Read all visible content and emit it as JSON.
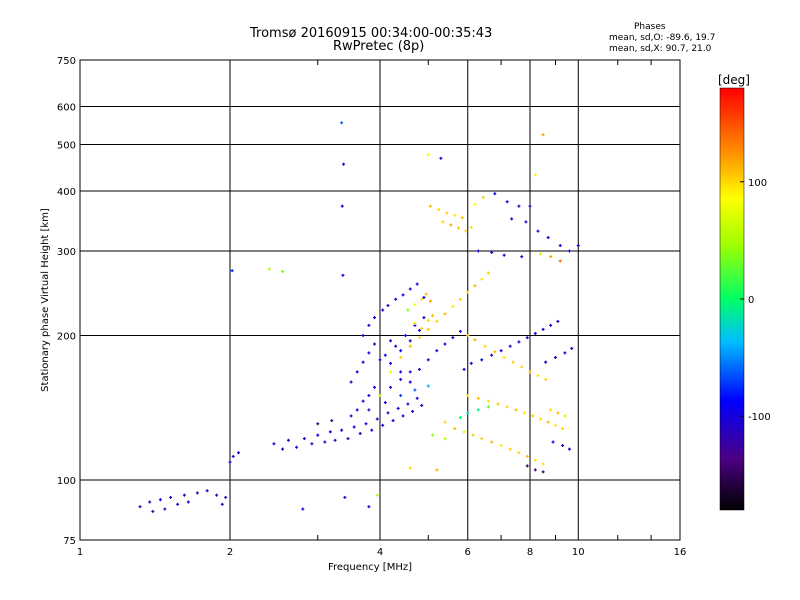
{
  "header": {
    "title_line1": "Tromsø 20160915 00:34:00-00:35:43",
    "title_line2": "RwPretec (8p)"
  },
  "phases_box": {
    "title": "Phases",
    "line_o": "mean, sd,O: -89.6, 19.7",
    "line_x": "mean, sd,X:  90.7, 21.0"
  },
  "colorbar": {
    "label": "[deg]",
    "range": [
      -180,
      180
    ],
    "ticks": [
      {
        "value": 100,
        "label": "100"
      },
      {
        "value": 0,
        "label": "0"
      },
      {
        "value": -100,
        "label": "-100"
      }
    ]
  },
  "chart_data": {
    "type": "scatter",
    "xlabel": "Frequency [MHz]",
    "ylabel": "Stationary phase Virtual Height [km]",
    "xscale": "log",
    "yscale": "log",
    "xlim": [
      1,
      16
    ],
    "ylim": [
      75,
      750
    ],
    "grid": true,
    "xticks": [
      1,
      2,
      4,
      6,
      8,
      10,
      16
    ],
    "yticks": [
      75,
      100,
      200,
      300,
      400,
      500,
      600,
      750
    ],
    "color_by": "phase_deg",
    "points": [
      [
        1.32,
        88,
        -110
      ],
      [
        1.38,
        90,
        -115
      ],
      [
        1.4,
        86,
        -120
      ],
      [
        1.45,
        91,
        -100
      ],
      [
        1.48,
        87,
        -112
      ],
      [
        1.52,
        92,
        -118
      ],
      [
        1.57,
        89,
        -105
      ],
      [
        1.62,
        93,
        -110
      ],
      [
        1.65,
        90,
        -100
      ],
      [
        1.72,
        94,
        -115
      ],
      [
        1.8,
        95,
        -108
      ],
      [
        1.88,
        93,
        -118
      ],
      [
        1.93,
        89,
        -112
      ],
      [
        1.96,
        92,
        -105
      ],
      [
        2.0,
        109,
        -100
      ],
      [
        2.03,
        112,
        -110
      ],
      [
        2.08,
        114,
        -95
      ],
      [
        2.02,
        273,
        -80
      ],
      [
        2.4,
        275,
        50
      ],
      [
        2.55,
        272,
        30
      ],
      [
        3.35,
        555,
        -60
      ],
      [
        3.38,
        455,
        -95
      ],
      [
        3.36,
        372,
        -100
      ],
      [
        3.37,
        267,
        -90
      ],
      [
        2.45,
        119,
        -100
      ],
      [
        2.55,
        116,
        -105
      ],
      [
        2.62,
        121,
        -110
      ],
      [
        2.72,
        117,
        -95
      ],
      [
        2.82,
        122,
        -105
      ],
      [
        2.92,
        119,
        -115
      ],
      [
        3.0,
        124,
        -100
      ],
      [
        3.1,
        120,
        -110
      ],
      [
        3.18,
        126,
        -95
      ],
      [
        3.25,
        121,
        -120
      ],
      [
        3.35,
        127,
        -105
      ],
      [
        3.45,
        122,
        -110
      ],
      [
        3.55,
        129,
        -100
      ],
      [
        3.65,
        125,
        -115
      ],
      [
        3.75,
        131,
        -95
      ],
      [
        3.85,
        127,
        -105
      ],
      [
        3.95,
        134,
        -110
      ],
      [
        4.05,
        130,
        -100
      ],
      [
        4.15,
        138,
        -115
      ],
      [
        4.25,
        133,
        -95
      ],
      [
        4.35,
        141,
        -105
      ],
      [
        4.45,
        136,
        -110
      ],
      [
        4.55,
        144,
        -100
      ],
      [
        4.65,
        139,
        -112
      ],
      [
        4.75,
        148,
        -95
      ],
      [
        4.85,
        143,
        -105
      ],
      [
        3.0,
        131,
        -140
      ],
      [
        3.2,
        133,
        -130
      ],
      [
        3.5,
        136,
        -125
      ],
      [
        3.8,
        140,
        -115
      ],
      [
        4.1,
        145,
        -95
      ],
      [
        4.4,
        150,
        -70
      ],
      [
        4.7,
        154,
        -60
      ],
      [
        5.0,
        157,
        -40
      ],
      [
        4.0,
        178,
        -100
      ],
      [
        4.1,
        182,
        -85
      ],
      [
        4.2,
        175,
        -95
      ],
      [
        4.3,
        190,
        -105
      ],
      [
        4.4,
        186,
        -90
      ],
      [
        4.5,
        200,
        -100
      ],
      [
        4.6,
        195,
        -110
      ],
      [
        4.7,
        210,
        -95
      ],
      [
        4.8,
        205,
        -105
      ],
      [
        4.9,
        218,
        -100
      ],
      [
        4.05,
        226,
        -100
      ],
      [
        4.15,
        231,
        -110
      ],
      [
        4.3,
        238,
        -105
      ],
      [
        4.45,
        243,
        -95
      ],
      [
        4.6,
        250,
        -110
      ],
      [
        4.75,
        256,
        -100
      ],
      [
        4.9,
        240,
        -100
      ],
      [
        4.55,
        226,
        40
      ],
      [
        4.7,
        232,
        80
      ],
      [
        4.85,
        238,
        100
      ],
      [
        4.95,
        244,
        110
      ],
      [
        5.05,
        236,
        120
      ],
      [
        4.7,
        212,
        95
      ],
      [
        4.85,
        207,
        105
      ],
      [
        5.0,
        215,
        100
      ],
      [
        5.1,
        220,
        110
      ],
      [
        5.05,
        372,
        110
      ],
      [
        5.25,
        366,
        100
      ],
      [
        5.45,
        360,
        105
      ],
      [
        5.65,
        356,
        95
      ],
      [
        5.85,
        352,
        110
      ],
      [
        5.35,
        345,
        100
      ],
      [
        5.55,
        340,
        115
      ],
      [
        5.75,
        335,
        105
      ],
      [
        5.95,
        330,
        100
      ],
      [
        6.1,
        336,
        95
      ],
      [
        5.0,
        476,
        80
      ],
      [
        5.3,
        468,
        -100
      ],
      [
        6.2,
        375,
        90
      ],
      [
        6.45,
        388,
        100
      ],
      [
        6.8,
        395,
        -90
      ],
      [
        7.2,
        380,
        -100
      ],
      [
        7.6,
        372,
        -105
      ],
      [
        8.0,
        372,
        -110
      ],
      [
        7.35,
        350,
        -100
      ],
      [
        7.85,
        345,
        -110
      ],
      [
        8.3,
        330,
        -115
      ],
      [
        8.7,
        320,
        -105
      ],
      [
        9.2,
        308,
        -95
      ],
      [
        9.6,
        300,
        -100
      ],
      [
        10.0,
        308,
        -110
      ],
      [
        8.4,
        296,
        60
      ],
      [
        8.8,
        292,
        120
      ],
      [
        9.2,
        286,
        140
      ],
      [
        6.3,
        300,
        -100
      ],
      [
        6.7,
        298,
        -105
      ],
      [
        7.1,
        294,
        -95
      ],
      [
        7.7,
        292,
        -110
      ],
      [
        8.2,
        432,
        90
      ],
      [
        8.5,
        524,
        120
      ],
      [
        6.0,
        200,
        105
      ],
      [
        6.2,
        196,
        115
      ],
      [
        6.5,
        190,
        100
      ],
      [
        6.8,
        185,
        110
      ],
      [
        7.1,
        180,
        95
      ],
      [
        7.4,
        176,
        105
      ],
      [
        7.7,
        172,
        100
      ],
      [
        8.0,
        168,
        110
      ],
      [
        8.3,
        165,
        95
      ],
      [
        8.6,
        162,
        100
      ],
      [
        6.0,
        150,
        100
      ],
      [
        6.3,
        148,
        110
      ],
      [
        6.6,
        146,
        95
      ],
      [
        6.9,
        144,
        105
      ],
      [
        7.2,
        142,
        100
      ],
      [
        7.5,
        140,
        110
      ],
      [
        7.8,
        138,
        95
      ],
      [
        8.1,
        136,
        105
      ],
      [
        8.4,
        134,
        100
      ],
      [
        8.7,
        132,
        110
      ],
      [
        9.0,
        130,
        95
      ],
      [
        9.3,
        128,
        100
      ],
      [
        5.4,
        132,
        100
      ],
      [
        5.65,
        128,
        110
      ],
      [
        5.9,
        126,
        95
      ],
      [
        6.15,
        124,
        105
      ],
      [
        6.4,
        122,
        100
      ],
      [
        6.7,
        120,
        110
      ],
      [
        7.0,
        118,
        95
      ],
      [
        7.3,
        116,
        105
      ],
      [
        7.6,
        114,
        100
      ],
      [
        7.9,
        112,
        110
      ],
      [
        8.2,
        110,
        95
      ],
      [
        8.5,
        108,
        100
      ],
      [
        5.1,
        124,
        40
      ],
      [
        5.4,
        122,
        60
      ],
      [
        5.8,
        135,
        0
      ],
      [
        6.0,
        138,
        -20
      ],
      [
        6.3,
        140,
        -10
      ],
      [
        6.6,
        142,
        20
      ],
      [
        5.9,
        170,
        -100
      ],
      [
        6.1,
        175,
        -110
      ],
      [
        6.4,
        178,
        -100
      ],
      [
        6.7,
        182,
        -105
      ],
      [
        7.0,
        186,
        -95
      ],
      [
        7.3,
        190,
        -110
      ],
      [
        7.6,
        194,
        -100
      ],
      [
        7.9,
        198,
        -105
      ],
      [
        8.2,
        202,
        -100
      ],
      [
        8.5,
        206,
        -110
      ],
      [
        8.8,
        210,
        -100
      ],
      [
        9.1,
        214,
        -105
      ],
      [
        8.6,
        176,
        -100
      ],
      [
        9.0,
        180,
        -110
      ],
      [
        9.4,
        184,
        -105
      ],
      [
        9.7,
        188,
        -100
      ],
      [
        8.8,
        140,
        100
      ],
      [
        9.1,
        138,
        110
      ],
      [
        9.4,
        136,
        95
      ],
      [
        8.9,
        120,
        -100
      ],
      [
        9.3,
        118,
        -110
      ],
      [
        9.6,
        116,
        -105
      ],
      [
        7.9,
        107,
        -150
      ],
      [
        8.2,
        105,
        -140
      ],
      [
        8.5,
        104,
        -145
      ],
      [
        2.8,
        87,
        -100
      ],
      [
        3.4,
        92,
        -110
      ],
      [
        3.8,
        88,
        -100
      ],
      [
        3.95,
        93,
        50
      ],
      [
        4.6,
        106,
        100
      ],
      [
        5.2,
        105,
        110
      ],
      [
        4.2,
        195,
        -100
      ],
      [
        4.4,
        168,
        -105
      ],
      [
        4.6,
        160,
        -95
      ],
      [
        4.8,
        170,
        -110
      ],
      [
        5.0,
        178,
        -100
      ],
      [
        5.2,
        186,
        -105
      ],
      [
        5.4,
        192,
        -95
      ],
      [
        5.6,
        198,
        -110
      ],
      [
        5.8,
        204,
        -100
      ],
      [
        4.0,
        150,
        -95
      ],
      [
        4.2,
        156,
        -105
      ],
      [
        4.4,
        162,
        -100
      ],
      [
        4.6,
        168,
        -110
      ],
      [
        3.6,
        140,
        -100
      ],
      [
        3.7,
        146,
        -110
      ],
      [
        3.8,
        150,
        -105
      ],
      [
        3.9,
        156,
        -95
      ],
      [
        3.5,
        160,
        -110
      ],
      [
        3.6,
        168,
        -100
      ],
      [
        3.7,
        176,
        -105
      ],
      [
        3.8,
        184,
        -95
      ],
      [
        3.9,
        192,
        -110
      ],
      [
        3.7,
        200,
        -100
      ],
      [
        3.8,
        210,
        -105
      ],
      [
        3.9,
        218,
        -95
      ],
      [
        4.0,
        150,
        60
      ],
      [
        4.2,
        168,
        80
      ],
      [
        4.4,
        180,
        100
      ],
      [
        4.6,
        190,
        110
      ],
      [
        4.8,
        198,
        95
      ],
      [
        5.0,
        206,
        105
      ],
      [
        5.2,
        214,
        100
      ],
      [
        5.4,
        222,
        110
      ],
      [
        5.6,
        230,
        95
      ],
      [
        5.8,
        238,
        105
      ],
      [
        6.0,
        246,
        100
      ],
      [
        6.2,
        254,
        110
      ],
      [
        6.4,
        262,
        95
      ],
      [
        6.6,
        270,
        105
      ]
    ]
  }
}
